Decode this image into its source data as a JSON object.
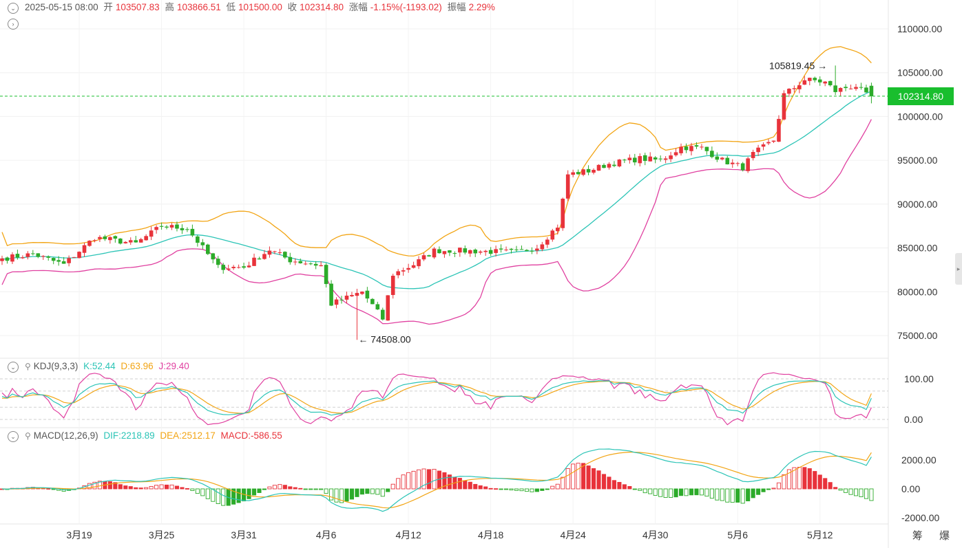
{
  "header": {
    "date": "2025-05-15 08:00",
    "open_label": "开",
    "open": "103507.83",
    "high_label": "高",
    "high": "103866.51",
    "low_label": "低",
    "low": "101500.00",
    "close_label": "收",
    "close": "102314.80",
    "change_label": "涨幅",
    "change": "-1.15%(-1193.02)",
    "amplitude_label": "振幅",
    "amplitude": "2.29%"
  },
  "kdj": {
    "name": "KDJ(9,3,3)",
    "k": "K:52.44",
    "d": "D:63.96",
    "j": "J:29.40"
  },
  "macd": {
    "name": "MACD(12,26,9)",
    "dif": "DIF:2218.89",
    "dea": "DEA:2512.17",
    "macd": "MACD:-586.55"
  },
  "price_tag": "102314.80",
  "max_label": "105819.45",
  "min_label": "74508.00",
  "bottom_buttons": "筹 爆",
  "colors": {
    "up": "#e8333b",
    "down": "#2cab2a",
    "ma_mid": "#2bc4b6",
    "band_up": "#f2a413",
    "band_low": "#e040a0",
    "last_price_line": "#19be2e"
  },
  "chart_data": [
    {
      "type": "candlestick",
      "title": "",
      "y_ticks": [
        "110000.00",
        "105000.00",
        "100000.00",
        "95000.00",
        "90000.00",
        "85000.00",
        "80000.00",
        "75000.00"
      ],
      "ylim": [
        72000,
        112000
      ],
      "x_ticks": [
        "3月19",
        "3月25",
        "3月31",
        "4月6",
        "4月12",
        "4月18",
        "4月24",
        "4月30",
        "5月6",
        "5月12"
      ],
      "x_tick_index": [
        15,
        31,
        47,
        63,
        79,
        95,
        111,
        127,
        143,
        159
      ],
      "candle_count": 170,
      "anchors": [
        [
          0,
          83800
        ],
        [
          6,
          84300
        ],
        [
          12,
          83100
        ],
        [
          18,
          86200
        ],
        [
          26,
          85500
        ],
        [
          31,
          87500
        ],
        [
          36,
          87200
        ],
        [
          42,
          82800
        ],
        [
          47,
          82800
        ],
        [
          52,
          84800
        ],
        [
          56,
          83600
        ],
        [
          62,
          83000
        ],
        [
          64,
          78600
        ],
        [
          70,
          80000
        ],
        [
          74,
          76900
        ],
        [
          76,
          82000
        ],
        [
          80,
          83100
        ],
        [
          84,
          84700
        ],
        [
          88,
          84700
        ],
        [
          94,
          84600
        ],
        [
          100,
          84500
        ],
        [
          104,
          85100
        ],
        [
          108,
          87500
        ],
        [
          110,
          93400
        ],
        [
          114,
          93800
        ],
        [
          118,
          94600
        ],
        [
          124,
          95200
        ],
        [
          128,
          95000
        ],
        [
          132,
          96500
        ],
        [
          136,
          96400
        ],
        [
          140,
          95000
        ],
        [
          144,
          94200
        ],
        [
          146,
          95700
        ],
        [
          150,
          97300
        ],
        [
          152,
          102500
        ],
        [
          154,
          103300
        ],
        [
          156,
          104200
        ],
        [
          158,
          104100
        ],
        [
          160,
          103900
        ],
        [
          162,
          102900
        ],
        [
          164,
          103300
        ],
        [
          166,
          103500
        ],
        [
          168,
          102400
        ],
        [
          169,
          102300
        ]
      ],
      "max_point": 105819.45,
      "min_point": 74508.0,
      "last_close": 102314.8,
      "series": [
        {
          "name": "BOLL mid",
          "values": []
        },
        {
          "name": "BOLL upper",
          "values": []
        },
        {
          "name": "BOLL lower",
          "values": []
        }
      ]
    },
    {
      "type": "line",
      "title": "KDJ(9,3,3)",
      "y_ticks": [
        "100.00",
        "0.00"
      ],
      "ylim": [
        -15,
        115
      ],
      "last": {
        "K": 52.44,
        "D": 63.96,
        "J": 29.4
      }
    },
    {
      "type": "bar",
      "title": "MACD(12,26,9)",
      "y_ticks": [
        "2000.00",
        "0.00",
        "-2000.00"
      ],
      "ylim": [
        -2400,
        3300
      ],
      "last": {
        "DIF": 2218.89,
        "DEA": 2512.17,
        "MACD": -586.55
      }
    }
  ]
}
